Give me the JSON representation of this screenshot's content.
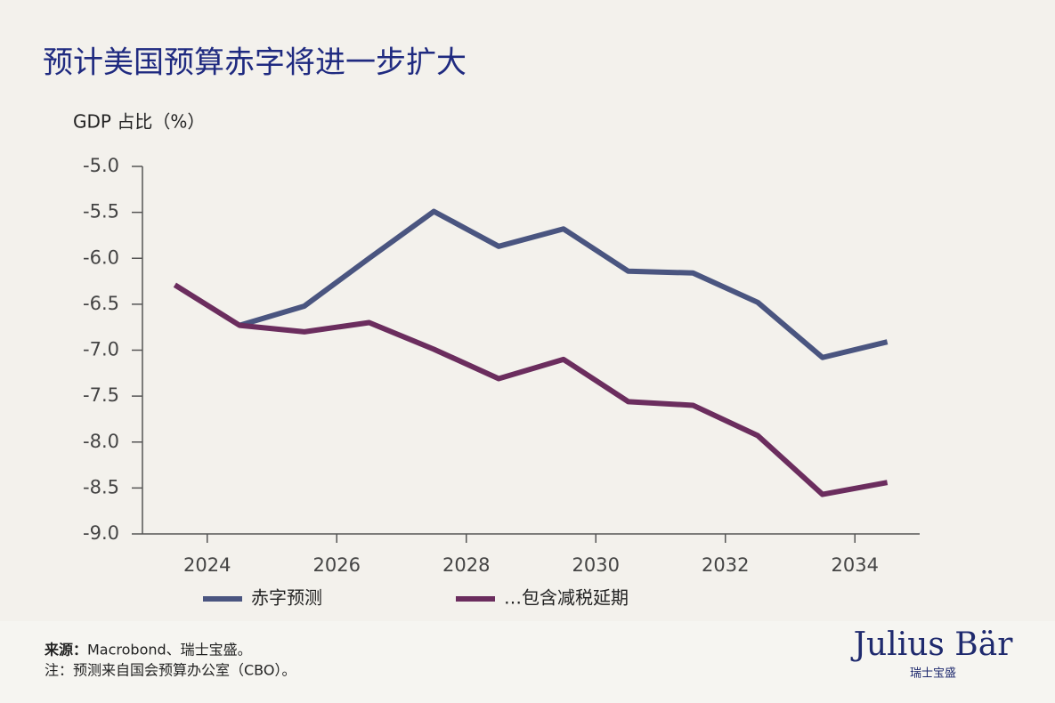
{
  "chart_data": {
    "type": "line",
    "title": "预计美国预算赤字将进一步扩大",
    "y_label": "GDP 占比（%）",
    "x": [
      2023.5,
      2024.5,
      2025.5,
      2026.5,
      2027.5,
      2028.5,
      2029.5,
      2030.5,
      2031.5,
      2032.5,
      2033.5,
      2034.5
    ],
    "series": [
      {
        "name": "赤字预测",
        "color": "#4a5580",
        "values": [
          null,
          -6.73,
          -6.52,
          -6.0,
          -5.49,
          -5.87,
          -5.68,
          -6.14,
          -6.16,
          -6.48,
          -7.08,
          -6.91
        ]
      },
      {
        "name": "…包含减税延期",
        "color": "#6b2d5e",
        "values": [
          -6.29,
          -6.73,
          -6.8,
          -6.7,
          -6.99,
          -7.31,
          -7.1,
          -7.56,
          -7.6,
          -7.93,
          -8.57,
          -8.44
        ]
      }
    ],
    "xlim": [
      2023,
      2035
    ],
    "xticks": [
      2024,
      2026,
      2028,
      2030,
      2032,
      2034
    ],
    "ylim": [
      -9,
      -5
    ],
    "yticks": [
      {
        "value": -9,
        "label": "-9.0"
      },
      {
        "value": -8.5,
        "label": "-8.5"
      },
      {
        "value": -8,
        "label": "-8.0"
      },
      {
        "value": -7.5,
        "label": "-7.5"
      },
      {
        "value": -7,
        "label": "-7.0"
      },
      {
        "value": -6.5,
        "label": "-6.5"
      },
      {
        "value": -6,
        "label": "-6.0"
      },
      {
        "value": -5.5,
        "label": "-5.5"
      },
      {
        "value": -5,
        "label": "-5.0"
      }
    ],
    "grid": false
  },
  "footer": {
    "source_label": "来源：",
    "source": "Macrobond、瑞士宝盛。",
    "note": "注：预测来自国会预算办公室（CBO）。",
    "logo": "Julius Bär",
    "logo_sub": "瑞士宝盛"
  }
}
